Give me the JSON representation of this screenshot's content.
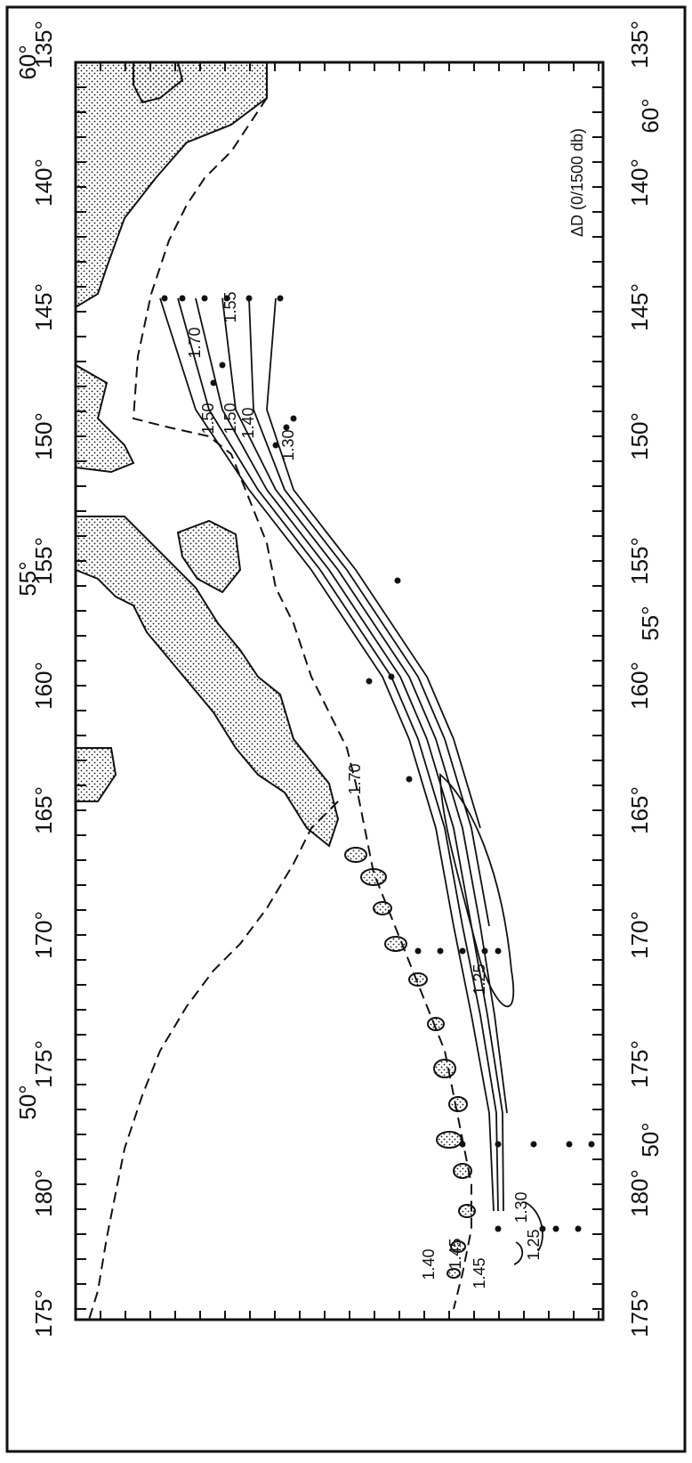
{
  "map": {
    "title": "ΔD (0/1500 db)",
    "longitude_labels": [
      "135°",
      "140°",
      "145°",
      "150°",
      "155°",
      "160°",
      "165°",
      "170°",
      "175°",
      "180°",
      "175°"
    ],
    "latitude_labels": [
      "60°",
      "55°",
      "50°"
    ],
    "contour_labels": [
      {
        "text": "1.70",
        "near": "145°W, 58°N"
      },
      {
        "text": "1.50",
        "near": "146°W, 57°N"
      },
      {
        "text": "1.50",
        "near": "146°W, 56°N"
      },
      {
        "text": "1.55",
        "near": "145°W, 55°N"
      },
      {
        "text": "1.40",
        "near": "148°W, 56°N"
      },
      {
        "text": "1.30",
        "near": "150°W, 56°N"
      },
      {
        "text": "1.70",
        "near": "163°W, 53°N"
      },
      {
        "text": "1.25",
        "near": "168°W, 51°N"
      },
      {
        "text": "1.45",
        "near": "180°, 52°N"
      },
      {
        "text": "1.40",
        "near": "180°, 52°N"
      },
      {
        "text": "1.45",
        "near": "180°, 51°N"
      },
      {
        "text": "1.30",
        "near": "179°W, 50°N"
      },
      {
        "text": "1.25",
        "near": "180°, 50°N"
      }
    ],
    "colors": {
      "ink": "#111111",
      "land_stipple": "#111111",
      "background": "#ffffff"
    }
  }
}
